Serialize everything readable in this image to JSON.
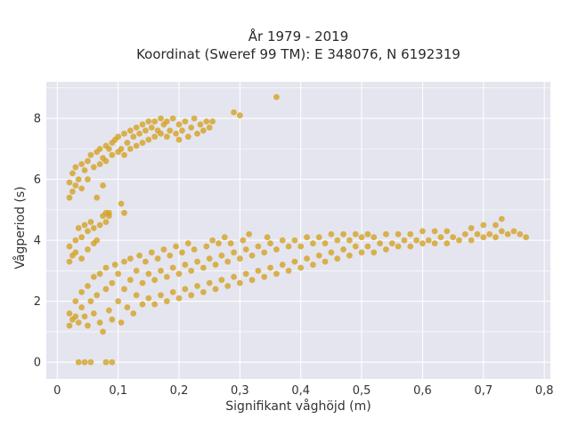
{
  "chart_data": {
    "type": "scatter",
    "title_line1": "År 1979 - 2019",
    "title_line2": "Koordinat (Sweref 99 TM): E 348076, N 6192319",
    "xlabel": "Signifikant våghöjd (m)",
    "ylabel": "Vågperiod (s)",
    "xlim": [
      -0.018,
      0.81
    ],
    "ylim": [
      -0.55,
      9.2
    ],
    "xticks": [
      0,
      0.1,
      0.2,
      0.3,
      0.4,
      0.5,
      0.6,
      0.7,
      0.8
    ],
    "xtick_labels": [
      "0",
      "0,1",
      "0,2",
      "0,3",
      "0,4",
      "0,5",
      "0,6",
      "0,7",
      "0,8"
    ],
    "yticks": [
      0,
      2,
      4,
      6,
      8
    ],
    "ytick_labels": [
      "0",
      "2",
      "4",
      "6",
      "8"
    ],
    "grid": true,
    "background_color": "#e5e5ef",
    "marker_color": "#d4a21f",
    "series": [
      {
        "points": [
          [
            0.02,
            1.2
          ],
          [
            0.02,
            1.6
          ],
          [
            0.025,
            1.4
          ],
          [
            0.03,
            1.5
          ],
          [
            0.03,
            2.0
          ],
          [
            0.035,
            1.3
          ],
          [
            0.04,
            1.8
          ],
          [
            0.04,
            2.3
          ],
          [
            0.045,
            1.5
          ],
          [
            0.05,
            2.5
          ],
          [
            0.05,
            1.2
          ],
          [
            0.055,
            2.0
          ],
          [
            0.06,
            2.8
          ],
          [
            0.06,
            1.6
          ],
          [
            0.065,
            2.2
          ],
          [
            0.07,
            2.9
          ],
          [
            0.07,
            1.3
          ],
          [
            0.075,
            1.0
          ],
          [
            0.08,
            2.4
          ],
          [
            0.08,
            3.1
          ],
          [
            0.085,
            1.7
          ],
          [
            0.09,
            2.6
          ],
          [
            0.09,
            1.4
          ],
          [
            0.095,
            3.2
          ],
          [
            0.1,
            2.0
          ],
          [
            0.1,
            2.9
          ],
          [
            0.105,
            1.3
          ],
          [
            0.11,
            2.4
          ],
          [
            0.11,
            3.3
          ],
          [
            0.115,
            1.8
          ],
          [
            0.12,
            2.7
          ],
          [
            0.12,
            3.4
          ],
          [
            0.125,
            1.6
          ],
          [
            0.13,
            2.2
          ],
          [
            0.13,
            3.0
          ],
          [
            0.135,
            3.5
          ],
          [
            0.14,
            1.9
          ],
          [
            0.14,
            2.6
          ],
          [
            0.145,
            3.3
          ],
          [
            0.15,
            2.1
          ],
          [
            0.15,
            2.9
          ],
          [
            0.155,
            3.6
          ],
          [
            0.16,
            1.9
          ],
          [
            0.16,
            2.7
          ],
          [
            0.165,
            3.4
          ],
          [
            0.17,
            2.2
          ],
          [
            0.17,
            3.0
          ],
          [
            0.175,
            3.7
          ],
          [
            0.18,
            2.0
          ],
          [
            0.18,
            2.8
          ],
          [
            0.185,
            3.5
          ],
          [
            0.19,
            2.3
          ],
          [
            0.19,
            3.1
          ],
          [
            0.195,
            3.8
          ],
          [
            0.2,
            2.1
          ],
          [
            0.2,
            2.9
          ],
          [
            0.205,
            3.6
          ],
          [
            0.21,
            2.4
          ],
          [
            0.21,
            3.2
          ],
          [
            0.215,
            3.9
          ],
          [
            0.22,
            2.2
          ],
          [
            0.22,
            3.0
          ],
          [
            0.225,
            3.7
          ],
          [
            0.23,
            2.5
          ],
          [
            0.23,
            3.3
          ],
          [
            0.24,
            2.3
          ],
          [
            0.24,
            3.1
          ],
          [
            0.245,
            3.8
          ],
          [
            0.25,
            2.6
          ],
          [
            0.25,
            3.4
          ],
          [
            0.255,
            4.0
          ],
          [
            0.26,
            2.4
          ],
          [
            0.26,
            3.2
          ],
          [
            0.265,
            3.9
          ],
          [
            0.27,
            2.7
          ],
          [
            0.27,
            3.5
          ],
          [
            0.275,
            4.1
          ],
          [
            0.28,
            2.5
          ],
          [
            0.28,
            3.3
          ],
          [
            0.285,
            3.9
          ],
          [
            0.29,
            2.8
          ],
          [
            0.29,
            3.6
          ],
          [
            0.3,
            2.6
          ],
          [
            0.3,
            3.4
          ],
          [
            0.305,
            4.0
          ],
          [
            0.31,
            2.9
          ],
          [
            0.31,
            3.7
          ],
          [
            0.315,
            4.2
          ],
          [
            0.32,
            2.7
          ],
          [
            0.32,
            3.5
          ],
          [
            0.33,
            3.0
          ],
          [
            0.33,
            3.8
          ],
          [
            0.34,
            2.8
          ],
          [
            0.34,
            3.6
          ],
          [
            0.345,
            4.1
          ],
          [
            0.35,
            3.1
          ],
          [
            0.35,
            3.9
          ],
          [
            0.36,
            2.9
          ],
          [
            0.36,
            3.7
          ],
          [
            0.37,
            3.2
          ],
          [
            0.37,
            4.0
          ],
          [
            0.38,
            3.0
          ],
          [
            0.38,
            3.8
          ],
          [
            0.39,
            3.3
          ],
          [
            0.39,
            4.0
          ],
          [
            0.4,
            3.1
          ],
          [
            0.4,
            3.8
          ],
          [
            0.41,
            3.4
          ],
          [
            0.41,
            4.1
          ],
          [
            0.42,
            3.2
          ],
          [
            0.42,
            3.9
          ],
          [
            0.43,
            3.5
          ],
          [
            0.43,
            4.1
          ],
          [
            0.44,
            3.3
          ],
          [
            0.44,
            3.9
          ],
          [
            0.45,
            3.6
          ],
          [
            0.45,
            4.2
          ],
          [
            0.46,
            3.4
          ],
          [
            0.46,
            4.0
          ],
          [
            0.47,
            3.7
          ],
          [
            0.47,
            4.2
          ],
          [
            0.48,
            3.5
          ],
          [
            0.48,
            4.0
          ],
          [
            0.49,
            3.8
          ],
          [
            0.49,
            4.2
          ],
          [
            0.5,
            3.6
          ],
          [
            0.5,
            4.1
          ],
          [
            0.51,
            3.8
          ],
          [
            0.51,
            4.2
          ],
          [
            0.52,
            3.6
          ],
          [
            0.52,
            4.1
          ],
          [
            0.53,
            3.9
          ],
          [
            0.54,
            3.7
          ],
          [
            0.54,
            4.2
          ],
          [
            0.55,
            3.9
          ],
          [
            0.56,
            3.8
          ],
          [
            0.56,
            4.2
          ],
          [
            0.57,
            4.0
          ],
          [
            0.58,
            3.8
          ],
          [
            0.58,
            4.2
          ],
          [
            0.59,
            4.0
          ],
          [
            0.6,
            3.9
          ],
          [
            0.6,
            4.3
          ],
          [
            0.61,
            4.0
          ],
          [
            0.62,
            3.9
          ],
          [
            0.62,
            4.3
          ],
          [
            0.63,
            4.1
          ],
          [
            0.64,
            3.9
          ],
          [
            0.64,
            4.3
          ],
          [
            0.65,
            4.1
          ],
          [
            0.66,
            4.0
          ],
          [
            0.67,
            4.2
          ],
          [
            0.68,
            4.0
          ],
          [
            0.68,
            4.4
          ],
          [
            0.69,
            4.2
          ],
          [
            0.7,
            4.1
          ],
          [
            0.7,
            4.5
          ],
          [
            0.71,
            4.2
          ],
          [
            0.72,
            4.1
          ],
          [
            0.72,
            4.5
          ],
          [
            0.73,
            4.3
          ],
          [
            0.73,
            4.7
          ],
          [
            0.74,
            4.2
          ],
          [
            0.75,
            4.3
          ],
          [
            0.76,
            4.2
          ],
          [
            0.77,
            4.1
          ],
          [
            0.02,
            3.3
          ],
          [
            0.02,
            3.8
          ],
          [
            0.025,
            3.5
          ],
          [
            0.03,
            4.0
          ],
          [
            0.03,
            3.6
          ],
          [
            0.035,
            4.4
          ],
          [
            0.04,
            3.4
          ],
          [
            0.04,
            4.1
          ],
          [
            0.045,
            4.5
          ],
          [
            0.05,
            3.7
          ],
          [
            0.05,
            4.3
          ],
          [
            0.055,
            4.6
          ],
          [
            0.06,
            3.9
          ],
          [
            0.06,
            4.4
          ],
          [
            0.065,
            4.0
          ],
          [
            0.07,
            4.5
          ],
          [
            0.075,
            4.8
          ],
          [
            0.08,
            4.6
          ],
          [
            0.085,
            4.8
          ],
          [
            0.02,
            5.4
          ],
          [
            0.02,
            5.9
          ],
          [
            0.025,
            5.6
          ],
          [
            0.025,
            6.2
          ],
          [
            0.03,
            5.8
          ],
          [
            0.03,
            6.4
          ],
          [
            0.035,
            6.0
          ],
          [
            0.04,
            6.5
          ],
          [
            0.04,
            5.7
          ],
          [
            0.045,
            6.3
          ],
          [
            0.05,
            6.6
          ],
          [
            0.05,
            6.0
          ],
          [
            0.055,
            6.8
          ],
          [
            0.06,
            6.4
          ],
          [
            0.065,
            6.9
          ],
          [
            0.07,
            6.5
          ],
          [
            0.07,
            7.0
          ],
          [
            0.075,
            6.7
          ],
          [
            0.08,
            7.1
          ],
          [
            0.08,
            6.6
          ],
          [
            0.085,
            7.0
          ],
          [
            0.09,
            7.2
          ],
          [
            0.09,
            6.8
          ],
          [
            0.095,
            7.3
          ],
          [
            0.1,
            6.9
          ],
          [
            0.1,
            7.4
          ],
          [
            0.105,
            7.0
          ],
          [
            0.11,
            7.5
          ],
          [
            0.11,
            6.8
          ],
          [
            0.115,
            7.2
          ],
          [
            0.12,
            7.6
          ],
          [
            0.12,
            7.0
          ],
          [
            0.125,
            7.4
          ],
          [
            0.13,
            7.7
          ],
          [
            0.13,
            7.1
          ],
          [
            0.135,
            7.5
          ],
          [
            0.14,
            7.8
          ],
          [
            0.14,
            7.2
          ],
          [
            0.145,
            7.6
          ],
          [
            0.15,
            7.9
          ],
          [
            0.15,
            7.3
          ],
          [
            0.155,
            7.7
          ],
          [
            0.16,
            7.4
          ],
          [
            0.16,
            7.9
          ],
          [
            0.165,
            7.6
          ],
          [
            0.17,
            8.0
          ],
          [
            0.17,
            7.5
          ],
          [
            0.175,
            7.8
          ],
          [
            0.18,
            7.4
          ],
          [
            0.18,
            7.9
          ],
          [
            0.185,
            7.6
          ],
          [
            0.19,
            8.0
          ],
          [
            0.195,
            7.5
          ],
          [
            0.2,
            7.8
          ],
          [
            0.2,
            7.3
          ],
          [
            0.205,
            7.6
          ],
          [
            0.21,
            7.9
          ],
          [
            0.215,
            7.4
          ],
          [
            0.22,
            7.7
          ],
          [
            0.225,
            8.0
          ],
          [
            0.23,
            7.5
          ],
          [
            0.235,
            7.8
          ],
          [
            0.24,
            7.6
          ],
          [
            0.245,
            7.9
          ],
          [
            0.25,
            7.7
          ],
          [
            0.255,
            7.9
          ],
          [
            0.29,
            8.2
          ],
          [
            0.3,
            8.1
          ],
          [
            0.36,
            8.7
          ],
          [
            0.035,
            0.0
          ],
          [
            0.045,
            0.0
          ],
          [
            0.055,
            0.0
          ],
          [
            0.08,
            0.0
          ],
          [
            0.09,
            0.0
          ],
          [
            0.065,
            5.4
          ],
          [
            0.075,
            5.8
          ],
          [
            0.08,
            4.9
          ],
          [
            0.085,
            4.9
          ],
          [
            0.105,
            5.2
          ],
          [
            0.11,
            4.9
          ]
        ]
      }
    ]
  }
}
